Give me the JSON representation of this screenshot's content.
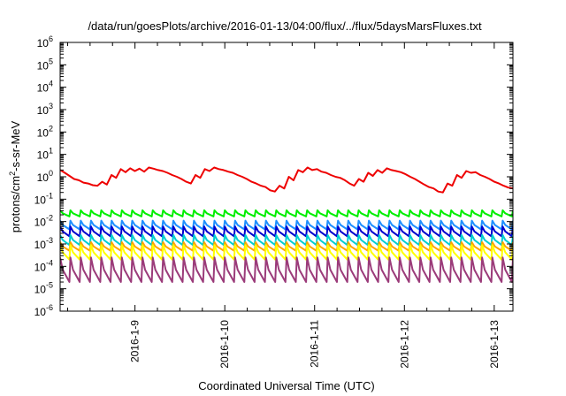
{
  "chart_data": {
    "type": "line",
    "title": "/data/run/goesPlots/archive/2016-01-13/04:00/flux/../flux/5daysMarsFluxes.txt",
    "xlabel": "Coordinated Universal Time (UTC)",
    "ylabel": {
      "prefix": "protons/cm",
      "sup": "2",
      "suffix": "-s-sr-MeV"
    },
    "yscale": "log",
    "ylim": [
      1e-06,
      1000000.0
    ],
    "yticks": [
      {
        "base": "10",
        "exp": "-6",
        "value": 1e-06
      },
      {
        "base": "10",
        "exp": "-5",
        "value": 1e-05
      },
      {
        "base": "10",
        "exp": "-4",
        "value": 0.0001
      },
      {
        "base": "10",
        "exp": "-3",
        "value": 0.001
      },
      {
        "base": "10",
        "exp": "-2",
        "value": 0.01
      },
      {
        "base": "10",
        "exp": "-1",
        "value": 0.1
      },
      {
        "base": "10",
        "exp": "0",
        "value": 1
      },
      {
        "base": "10",
        "exp": "1",
        "value": 10
      },
      {
        "base": "10",
        "exp": "2",
        "value": 100
      },
      {
        "base": "10",
        "exp": "3",
        "value": 1000
      },
      {
        "base": "10",
        "exp": "4",
        "value": 10000
      },
      {
        "base": "10",
        "exp": "5",
        "value": 100000
      },
      {
        "base": "10",
        "exp": "6",
        "value": 1000000
      }
    ],
    "xlim": [
      "2016-01-08 04:00",
      "2016-01-13 05:00"
    ],
    "xticks": [
      {
        "label": "2016-1-9",
        "value": "2016-01-09 00:00"
      },
      {
        "label": "2016-1-10",
        "value": "2016-01-10 00:00"
      },
      {
        "label": "2016-1-11",
        "value": "2016-01-11 00:00"
      },
      {
        "label": "2016-1-12",
        "value": "2016-01-12 00:00"
      },
      {
        "label": "2016-1-13",
        "value": "2016-01-13 00:00"
      }
    ],
    "grid": false,
    "series": [
      {
        "color": "#ee0000",
        "x_start": "2016-01-08 04:00",
        "x_end": "2016-01-13 05:00",
        "values": [
          2.0,
          1.5,
          1.1,
          0.8,
          0.7,
          0.55,
          0.5,
          0.42,
          0.4,
          0.6,
          0.45,
          1.2,
          0.9,
          2.2,
          1.6,
          2.4,
          1.8,
          2.3,
          1.7,
          2.6,
          2.3,
          2.0,
          1.8,
          1.5,
          1.2,
          1.0,
          0.8,
          0.6,
          0.5,
          1.2,
          0.9,
          2.2,
          1.8,
          2.6,
          2.2,
          2.0,
          1.7,
          1.5,
          1.2,
          1.0,
          0.8,
          0.6,
          0.5,
          0.4,
          0.35,
          0.25,
          0.22,
          0.4,
          0.3,
          1.0,
          0.7,
          2.0,
          1.6,
          2.6,
          2.0,
          2.2,
          1.7,
          1.5,
          1.2,
          1.0,
          0.9,
          0.7,
          0.5,
          0.4,
          0.8,
          0.6,
          1.5,
          1.1,
          2.0,
          1.5,
          2.4,
          2.0,
          1.8,
          1.6,
          1.3,
          1.0,
          0.8,
          0.6,
          0.45,
          0.35,
          0.3,
          0.22,
          0.2,
          0.5,
          0.4,
          1.2,
          0.9,
          1.8,
          1.5,
          1.6,
          1.2,
          1.0,
          0.8,
          0.6,
          0.5,
          0.4,
          0.33,
          0.3
        ]
      },
      {
        "color": "#00ee00",
        "x_start": "2016-01-08 04:00",
        "x_end": "2016-01-13 05:00",
        "cycles": 44,
        "peak": 0.032,
        "trough": 0.017
      },
      {
        "color": "#1e90ff",
        "x_start": "2016-01-08 04:00",
        "x_end": "2016-01-13 05:00",
        "cycles": 44,
        "peak": 0.011,
        "trough": 0.0045
      },
      {
        "color": "#0000cd",
        "x_start": "2016-01-08 04:00",
        "x_end": "2016-01-13 05:00",
        "cycles": 44,
        "peak": 0.006,
        "trough": 0.0022
      },
      {
        "color": "#00ced1",
        "x_start": "2016-01-08 04:00",
        "x_end": "2016-01-13 05:00",
        "cycles": 44,
        "peak": 0.0025,
        "trough": 0.0009
      },
      {
        "color": "#ffa500",
        "x_start": "2016-01-08 04:00",
        "x_end": "2016-01-13 05:00",
        "cycles": 44,
        "peak": 0.0012,
        "trough": 0.0005
      },
      {
        "color": "#ffff00",
        "x_start": "2016-01-08 04:00",
        "x_end": "2016-01-13 05:00",
        "cycles": 44,
        "peak": 0.0009,
        "trough": 0.0002
      },
      {
        "color": "#9b3b7a",
        "x_start": "2016-01-08 04:00",
        "x_end": "2016-01-13 05:00",
        "cycles": 44,
        "peak": 0.00025,
        "trough": 2e-05
      }
    ]
  }
}
